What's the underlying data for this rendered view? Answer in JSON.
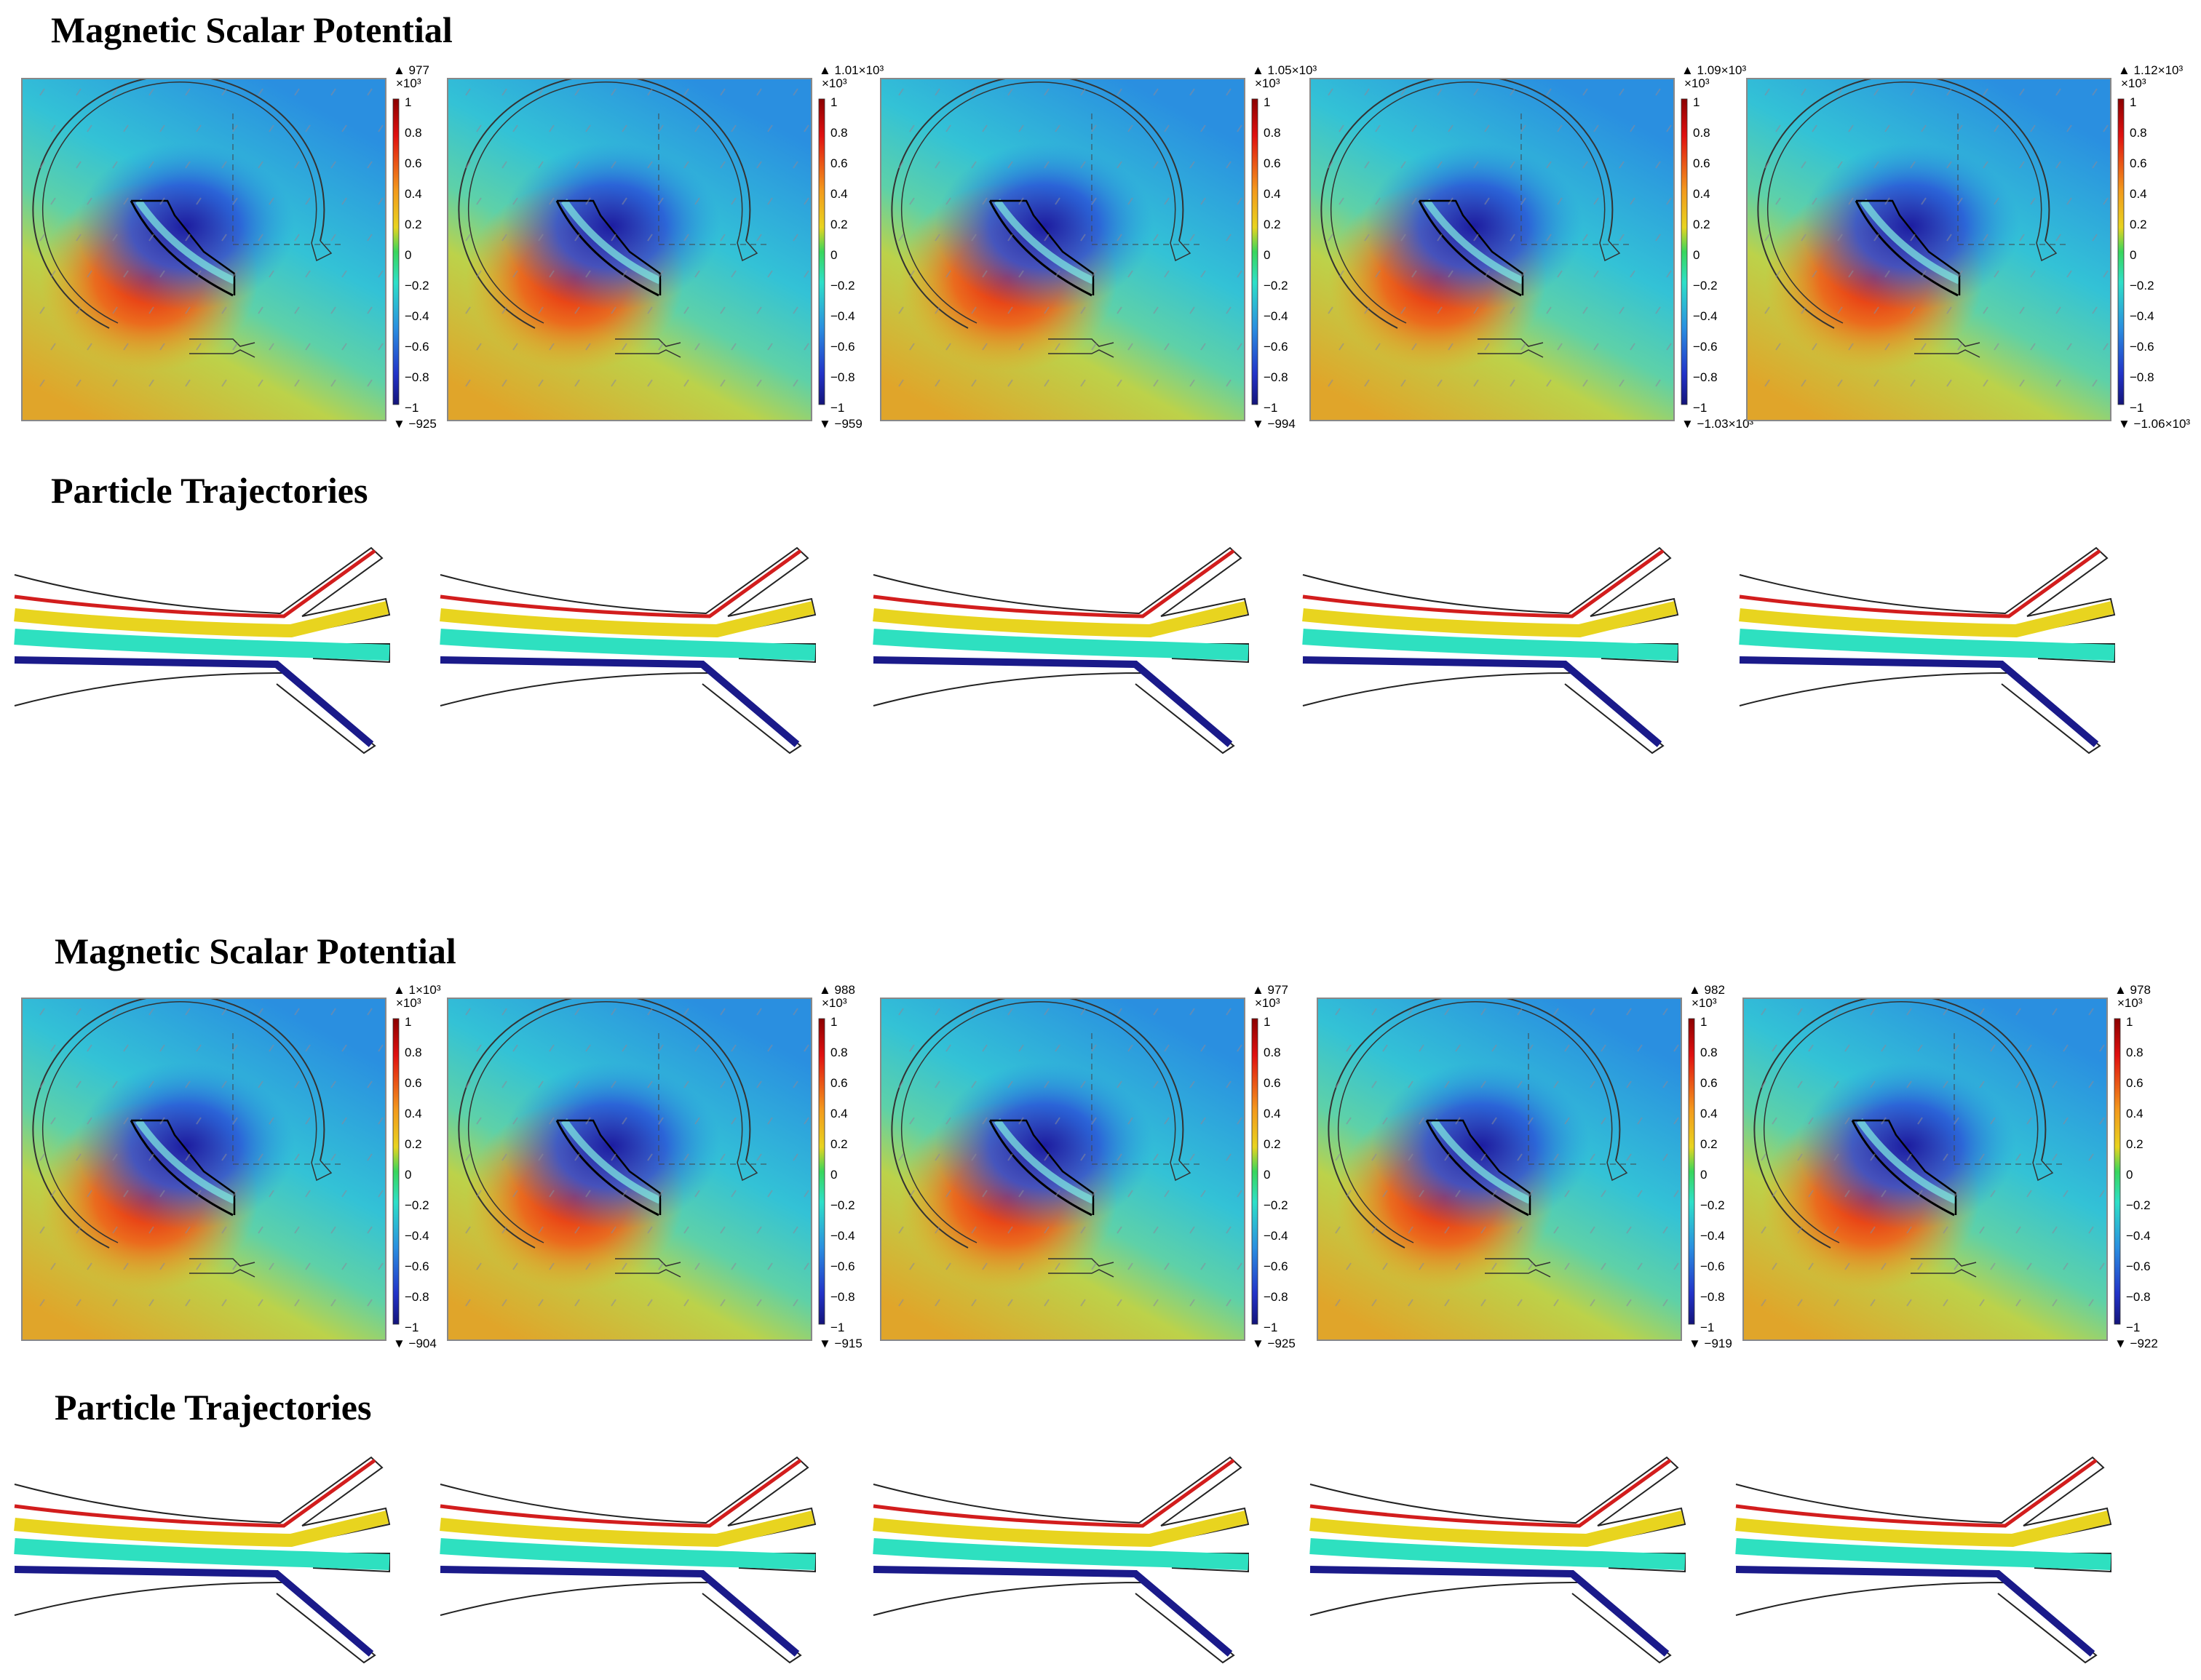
{
  "section1": {
    "title_potential": "Magnetic Scalar Potential",
    "title_trajectories": "Particle Trajectories",
    "panels": [
      {
        "max_label": "977",
        "min_label": "−925"
      },
      {
        "max_label": "1.01×10³",
        "min_label": "−959"
      },
      {
        "max_label": "1.05×10³",
        "min_label": "−994"
      },
      {
        "max_label": "1.09×10³",
        "min_label": "−1.03×10³"
      },
      {
        "max_label": "1.12×10³",
        "min_label": "−1.06×10³"
      }
    ]
  },
  "section2": {
    "title_potential": "Magnetic Scalar Potential",
    "title_trajectories": "Particle Trajectories",
    "panels": [
      {
        "max_label": "1×10³",
        "min_label": "−904"
      },
      {
        "max_label": "988",
        "min_label": "−915"
      },
      {
        "max_label": "977",
        "min_label": "−925"
      },
      {
        "max_label": "982",
        "min_label": "−919"
      },
      {
        "max_label": "978",
        "min_label": "−922"
      }
    ]
  },
  "colorbar": {
    "scale_label": "×10³",
    "ticks": [
      "1",
      "0.8",
      "0.6",
      "0.4",
      "0.2",
      "0",
      "−0.2",
      "−0.4",
      "−0.6",
      "−0.8",
      "−1"
    ]
  },
  "colors": {
    "red": "#d21d1d",
    "orange": "#f0a020",
    "yellow": "#e8d41f",
    "teal": "#2ee0c0",
    "blue": "#1a1a8a",
    "field_top": "#31a5de",
    "field_bottom": "#d9b62d"
  }
}
